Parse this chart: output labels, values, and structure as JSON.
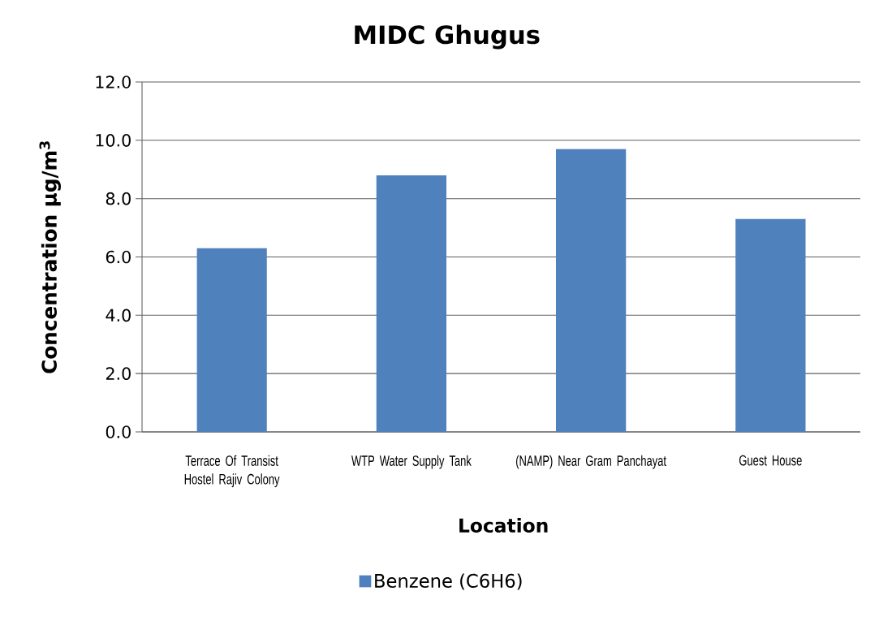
{
  "chart_data": {
    "type": "bar",
    "title": "MIDC Ghugus",
    "xlabel": "Location",
    "ylabel": "Concentration µg/m$^{3}$",
    "categories": [
      "Terrace Of Transist Hostel Rajiv Colony",
      "WTP Water Supply Tank",
      "(NAMP) Near Gram Panchayat",
      "Guest House"
    ],
    "series": [
      {
        "name": "Benzene (C6H6)",
        "color": "#4f81bd",
        "values": [
          6.3,
          8.8,
          9.7,
          7.3
        ]
      }
    ],
    "ylim": [
      0,
      12
    ],
    "yticks": [
      {
        "value": 0,
        "label": "0.0"
      },
      {
        "value": 2,
        "label": "2.0"
      },
      {
        "value": 4,
        "label": "4.0"
      },
      {
        "value": 6,
        "label": "6.0"
      },
      {
        "value": 8,
        "label": "8.0"
      },
      {
        "value": 10,
        "label": "10.0"
      },
      {
        "value": 12,
        "label": "12.0"
      }
    ],
    "grid": "y",
    "legend": "bottom"
  }
}
